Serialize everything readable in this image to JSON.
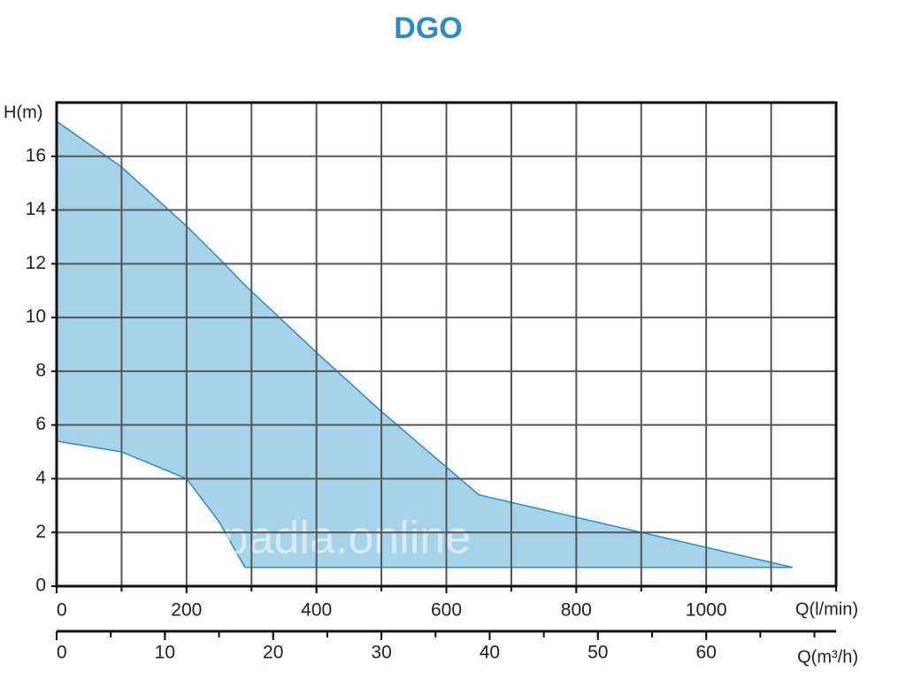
{
  "chart_data": {
    "type": "area",
    "title": "DGO",
    "y_label": "H(m)",
    "x_label": "Q(l/min)",
    "x2_label": "Q(m³/h)",
    "watermark": "Čerpadla.online",
    "x": [
      0,
      100,
      200,
      250,
      290,
      400,
      500,
      650,
      1133
    ],
    "upper": [
      17.3,
      15.6,
      13.4,
      12.2,
      11.2,
      8.7,
      6.5,
      3.4,
      0.7
    ],
    "lower": [
      5.4,
      5.0,
      4.0,
      2.4,
      0.7,
      0.7,
      0.7,
      0.7,
      0.7
    ],
    "fill": "#a6d3ea",
    "stroke": "#2a8ac4",
    "xlim": [
      0,
      1200
    ],
    "xticks": [
      0,
      200,
      400,
      600,
      800,
      1000
    ],
    "x_grid_step": 100,
    "ylim": [
      0,
      18
    ],
    "yticks": [
      0,
      2,
      4,
      6,
      8,
      10,
      12,
      14,
      16
    ],
    "x2lim": [
      0,
      72
    ],
    "x2ticks": [
      0,
      10,
      20,
      30,
      40,
      50,
      60
    ],
    "x2_minor_step": 5,
    "grid": true
  }
}
